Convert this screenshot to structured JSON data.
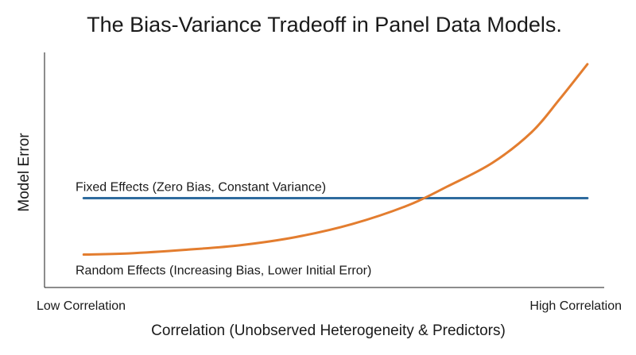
{
  "chart_data": {
    "type": "line",
    "title": "The Bias-Variance Tradeoff in Panel Data Models.",
    "xlabel": "Correlation (Unobserved Heterogeneity & Predictors)",
    "ylabel": "Model Error",
    "x_tick_labels": [
      "Low Correlation",
      "High Correlation"
    ],
    "xlim": [
      0,
      1
    ],
    "ylim": [
      0,
      1
    ],
    "grid": false,
    "legend": "none",
    "series": [
      {
        "name": "Fixed Effects (Zero Bias, Constant Variance)",
        "color": "#2e6b9e",
        "x": [
          0.07,
          0.97
        ],
        "y": [
          0.38,
          0.38
        ]
      },
      {
        "name": "Random Effects (Increasing Bias, Lower Initial Error)",
        "color": "#e37d2f",
        "x": [
          0.07,
          0.15,
          0.25,
          0.35,
          0.45,
          0.55,
          0.65,
          0.72,
          0.8,
          0.87,
          0.92,
          0.97
        ],
        "y": [
          0.14,
          0.145,
          0.16,
          0.18,
          0.215,
          0.27,
          0.35,
          0.43,
          0.53,
          0.66,
          0.8,
          0.95
        ]
      }
    ]
  }
}
